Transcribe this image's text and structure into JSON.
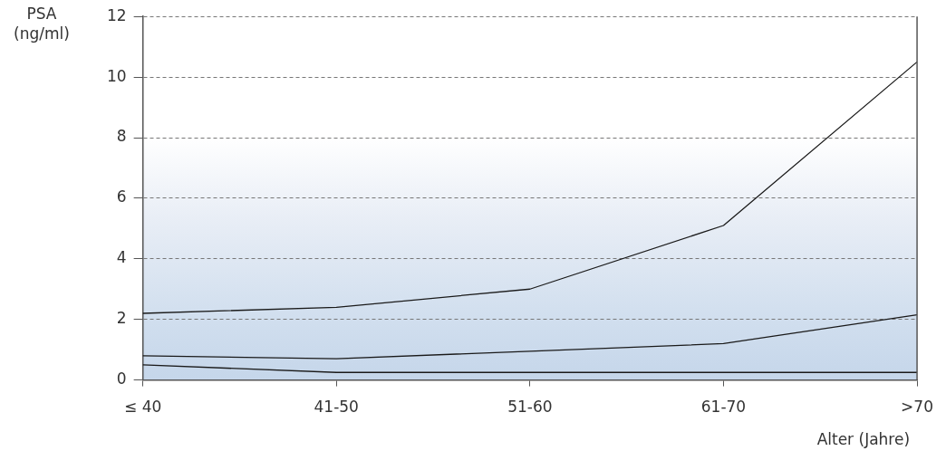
{
  "chart_data": {
    "type": "line",
    "ylabel": "PSA (ng/ml)",
    "xlabel": "Alter (Jahre)",
    "categories": [
      "≤ 40",
      "41-50",
      "51-60",
      "61-70",
      ">70"
    ],
    "series": [
      {
        "color": "#1a1a1a",
        "values": [
          2.2,
          2.4,
          3.0,
          5.1,
          10.5
        ]
      },
      {
        "color": "#1a1a1a",
        "values": [
          0.8,
          0.7,
          0.95,
          1.2,
          2.15
        ]
      },
      {
        "color": "#1a1a1a",
        "values": [
          0.5,
          0.25,
          0.25,
          0.25,
          0.25
        ]
      }
    ],
    "ylim": [
      0,
      12
    ],
    "yticks": [
      0,
      2,
      4,
      6,
      8,
      10,
      12
    ],
    "grid": "y",
    "legend": false,
    "marker": "none",
    "line_style": "solid"
  }
}
